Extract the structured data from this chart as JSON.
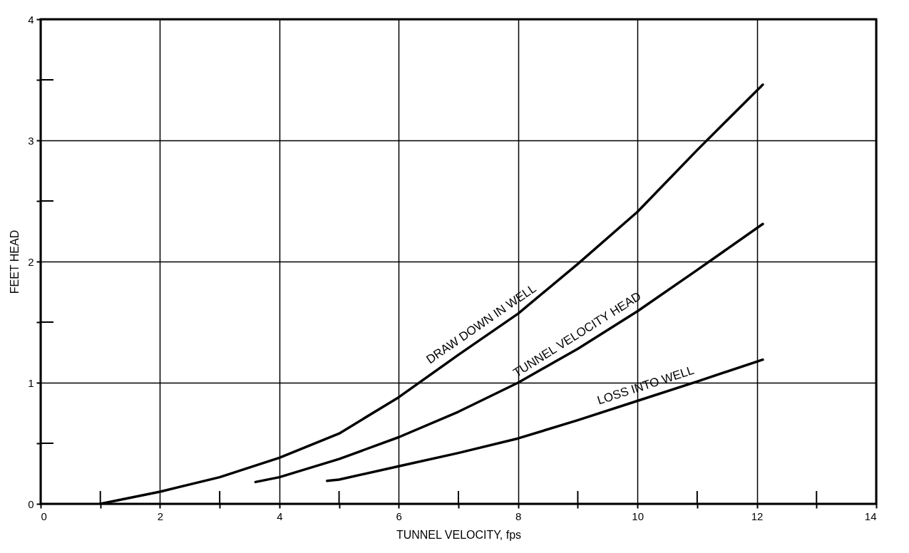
{
  "chart_data": {
    "type": "line",
    "xlabel": "TUNNEL VELOCITY, fps",
    "ylabel": "FEET HEAD",
    "xlim": [
      0,
      14
    ],
    "ylim": [
      0,
      4
    ],
    "xticks": [
      0,
      {
        "value": 1,
        "label": null
      },
      2,
      {
        "value": 3,
        "label": null
      },
      4,
      {
        "value": 5,
        "label": null
      },
      6,
      {
        "value": 7,
        "label": null
      },
      8,
      {
        "value": 9,
        "label": null
      },
      10,
      {
        "value": 11,
        "label": null
      },
      12,
      {
        "value": 13,
        "label": null
      },
      14
    ],
    "yticks": [
      0,
      {
        "value": 0.5,
        "label": null
      },
      1,
      {
        "value": 1.5,
        "label": null
      },
      2,
      {
        "value": 2.5,
        "label": null
      },
      3,
      {
        "value": 3.5,
        "label": null
      },
      4
    ],
    "grid": true,
    "line_style": "solid",
    "series": [
      {
        "color": "#000000",
        "x": [
          1,
          2,
          3,
          4,
          5,
          6,
          7,
          8,
          9,
          10,
          11,
          12.1
        ],
        "values": [
          0,
          0.1,
          0.22,
          0.38,
          0.58,
          0.88,
          1.23,
          1.57,
          1.98,
          2.41,
          2.92,
          3.46
        ]
      },
      {
        "color": "#000000",
        "x": [
          3.6,
          4,
          5,
          6,
          7,
          8,
          9,
          10,
          11,
          12.1
        ],
        "values": [
          0.18,
          0.22,
          0.37,
          0.55,
          0.76,
          1.0,
          1.28,
          1.59,
          1.93,
          2.31
        ]
      },
      {
        "color": "#000000",
        "x": [
          4.8,
          5,
          6,
          7,
          8,
          9,
          10,
          11,
          12.1
        ],
        "values": [
          0.19,
          0.2,
          0.31,
          0.42,
          0.54,
          0.69,
          0.85,
          1.01,
          1.19
        ]
      }
    ],
    "annotations": [
      {
        "text": "DRAW DOWN IN WELL",
        "x": 7.5,
        "y": 1.4
      },
      {
        "text": "TUNNEL VELOCITY HEAD",
        "x": 9.1,
        "y": 1.31
      },
      {
        "text": "LOSS INTO WELL",
        "x": 10.2,
        "y": 0.88
      }
    ]
  }
}
